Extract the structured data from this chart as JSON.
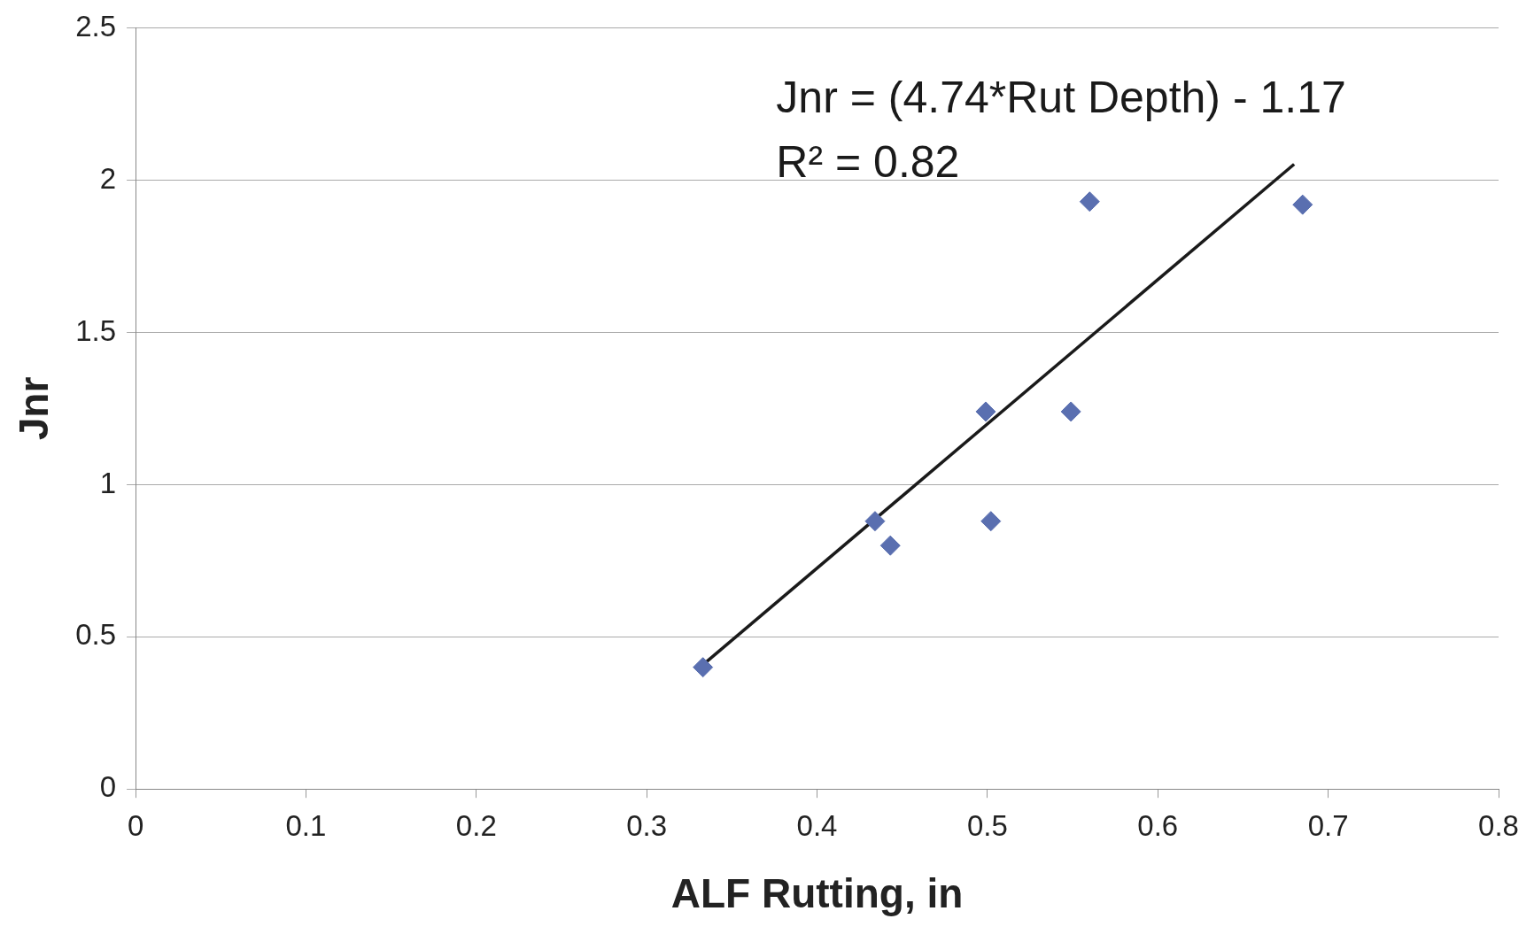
{
  "chart_data": {
    "type": "scatter",
    "xlabel": "ALF Rutting, in",
    "ylabel": "Jnr",
    "annotations": [
      "Jnr = (4.74*Rut Depth) - 1.17",
      "R² = 0.82"
    ],
    "series": [
      {
        "color": "#5a6fb0",
        "marker": "diamond",
        "x": [
          0.333,
          0.434,
          0.443,
          0.499,
          0.502,
          0.549,
          0.56,
          0.685
        ],
        "values": [
          0.4,
          0.88,
          0.8,
          1.24,
          0.88,
          1.24,
          1.93,
          1.92
        ]
      },
      {
        "type": "line",
        "color": "#1a1a1a",
        "marker": "none",
        "line_style": "solid",
        "x": [
          0.333,
          0.68
        ],
        "values": [
          0.408,
          2.053
        ]
      }
    ],
    "xlim": [
      0,
      0.8
    ],
    "xticks": [
      0,
      0.1,
      0.2,
      0.3,
      0.4,
      0.5,
      0.6,
      0.7,
      0.8
    ],
    "ylim": [
      0,
      2.5
    ],
    "yticks": [
      0,
      0.5,
      1,
      1.5,
      2,
      2.5
    ],
    "grid": "y",
    "legend": false
  }
}
